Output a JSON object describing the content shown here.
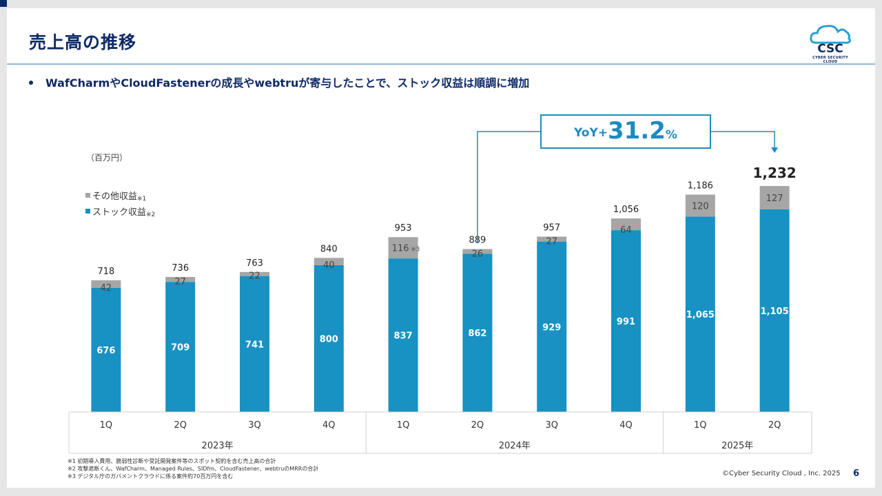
{
  "slide": {
    "title": "売上高の推移",
    "bullet": "WafCharmやCloudFastenerの成長やwebtruが寄与したことで、ストック収益は順調に増加",
    "logo_text": "CSC",
    "logo_subtext": "CYBER SECURITY CLOUD",
    "copyright": "©Cyber Security Cloud , Inc. 2025",
    "page_number": "6",
    "footnotes": [
      "※1 初期導入費用、脆弱性診断や受託開発案件等のスポット契約を含む売上高の合計",
      "※2 攻撃遮断くん、WafCharm、Managed Rules、SIDfm、CloudFastener、webtruのMRRの合計",
      "※3 デジタル庁のガバメントクラウドに係る案件約70百万円を含む"
    ],
    "yoy": {
      "prefix": "YoY+",
      "value": "31.2",
      "suffix": "%"
    }
  },
  "chart_data": {
    "type": "bar",
    "stacked": true,
    "unit_label": "（百万円）",
    "categories": [
      "1Q",
      "2Q",
      "3Q",
      "4Q",
      "1Q",
      "2Q",
      "3Q",
      "4Q",
      "1Q",
      "2Q"
    ],
    "groups": [
      {
        "label": "2023年",
        "count": 4
      },
      {
        "label": "2024年",
        "count": 4
      },
      {
        "label": "2025年",
        "count": 2
      }
    ],
    "series": [
      {
        "name": "ストック収益",
        "note": "※2",
        "color": "#1891c3",
        "values": [
          676,
          709,
          741,
          800,
          837,
          862,
          929,
          991,
          1065,
          1105
        ],
        "labels": [
          "676",
          "709",
          "741",
          "800",
          "837",
          "862",
          "929",
          "991",
          "1,065",
          "1,105"
        ]
      },
      {
        "name": "その他収益",
        "note": "※1",
        "color": "#a6a6a6",
        "values": [
          42,
          27,
          22,
          40,
          116,
          26,
          27,
          64,
          120,
          127
        ],
        "labels": [
          "42",
          "27",
          "22",
          "40",
          "116",
          "26",
          "27",
          "64",
          "120",
          "127"
        ],
        "label_notes": [
          "",
          "",
          "",
          "",
          "※3",
          "",
          "",
          "",
          "",
          ""
        ]
      }
    ],
    "totals": [
      718,
      736,
      763,
      840,
      953,
      889,
      957,
      1056,
      1186,
      1232
    ],
    "total_labels": [
      "718",
      "736",
      "763",
      "840",
      "953",
      "889",
      "957",
      "1,056",
      "1,186",
      "1,232"
    ],
    "highlight_index": 9,
    "yoy_from_index": 5,
    "ylim": [
      0,
      1300
    ]
  }
}
